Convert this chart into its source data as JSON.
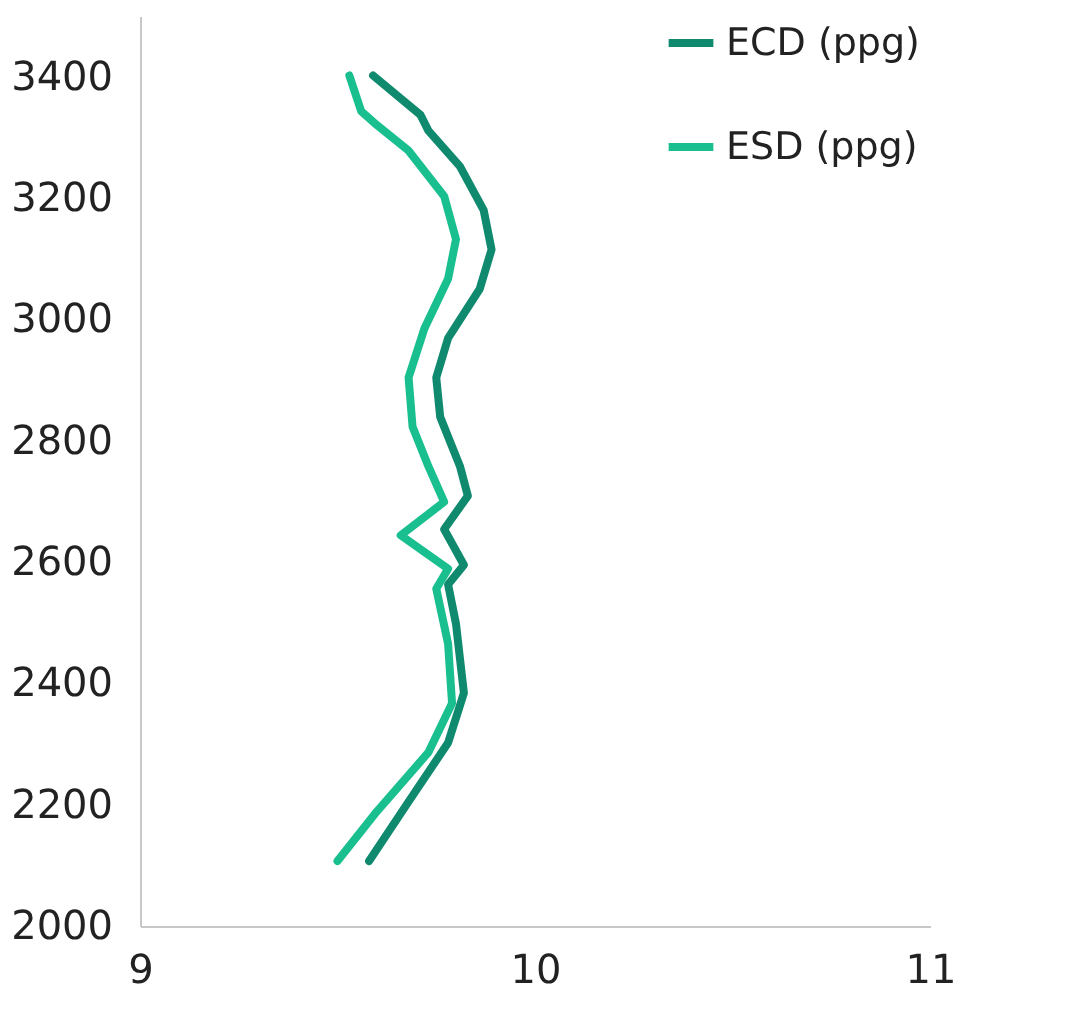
{
  "chart_data": {
    "type": "line",
    "xlim": [
      9,
      11
    ],
    "xticks": [
      9,
      10,
      11
    ],
    "ylim": [
      2000,
      3500
    ],
    "yticks": [
      2000,
      2200,
      2400,
      2600,
      2800,
      3000,
      3200,
      3400
    ],
    "grid": false,
    "legend": "top right",
    "marker": "none",
    "line_style": "solid",
    "series": [
      {
        "name": "ECD (ppg)",
        "color": "#0f8a6f",
        "x": [
          9.59,
          9.71,
          9.73,
          9.81,
          9.87,
          9.89,
          9.86,
          9.78,
          9.75,
          9.76,
          9.81,
          9.83,
          9.77,
          9.82,
          9.78,
          9.8,
          9.82,
          9.78,
          9.68,
          9.58
        ],
        "values": [
          3402,
          3337,
          3311,
          3252,
          3180,
          3115,
          3050,
          2969,
          2904,
          2839,
          2758,
          2709,
          2654,
          2595,
          2563,
          2498,
          2384,
          2302,
          2205,
          2107
        ]
      },
      {
        "name": "ESD  (ppg)",
        "color": "#19bf8e",
        "x": [
          9.53,
          9.56,
          9.6,
          9.68,
          9.77,
          9.8,
          9.78,
          9.72,
          9.68,
          9.69,
          9.73,
          9.77,
          9.66,
          9.78,
          9.75,
          9.78,
          9.79,
          9.73,
          9.6,
          9.5
        ],
        "values": [
          3402,
          3343,
          3320,
          3278,
          3203,
          3132,
          3067,
          2985,
          2904,
          2823,
          2758,
          2699,
          2644,
          2589,
          2556,
          2465,
          2367,
          2286,
          2189,
          2107
        ]
      }
    ]
  }
}
